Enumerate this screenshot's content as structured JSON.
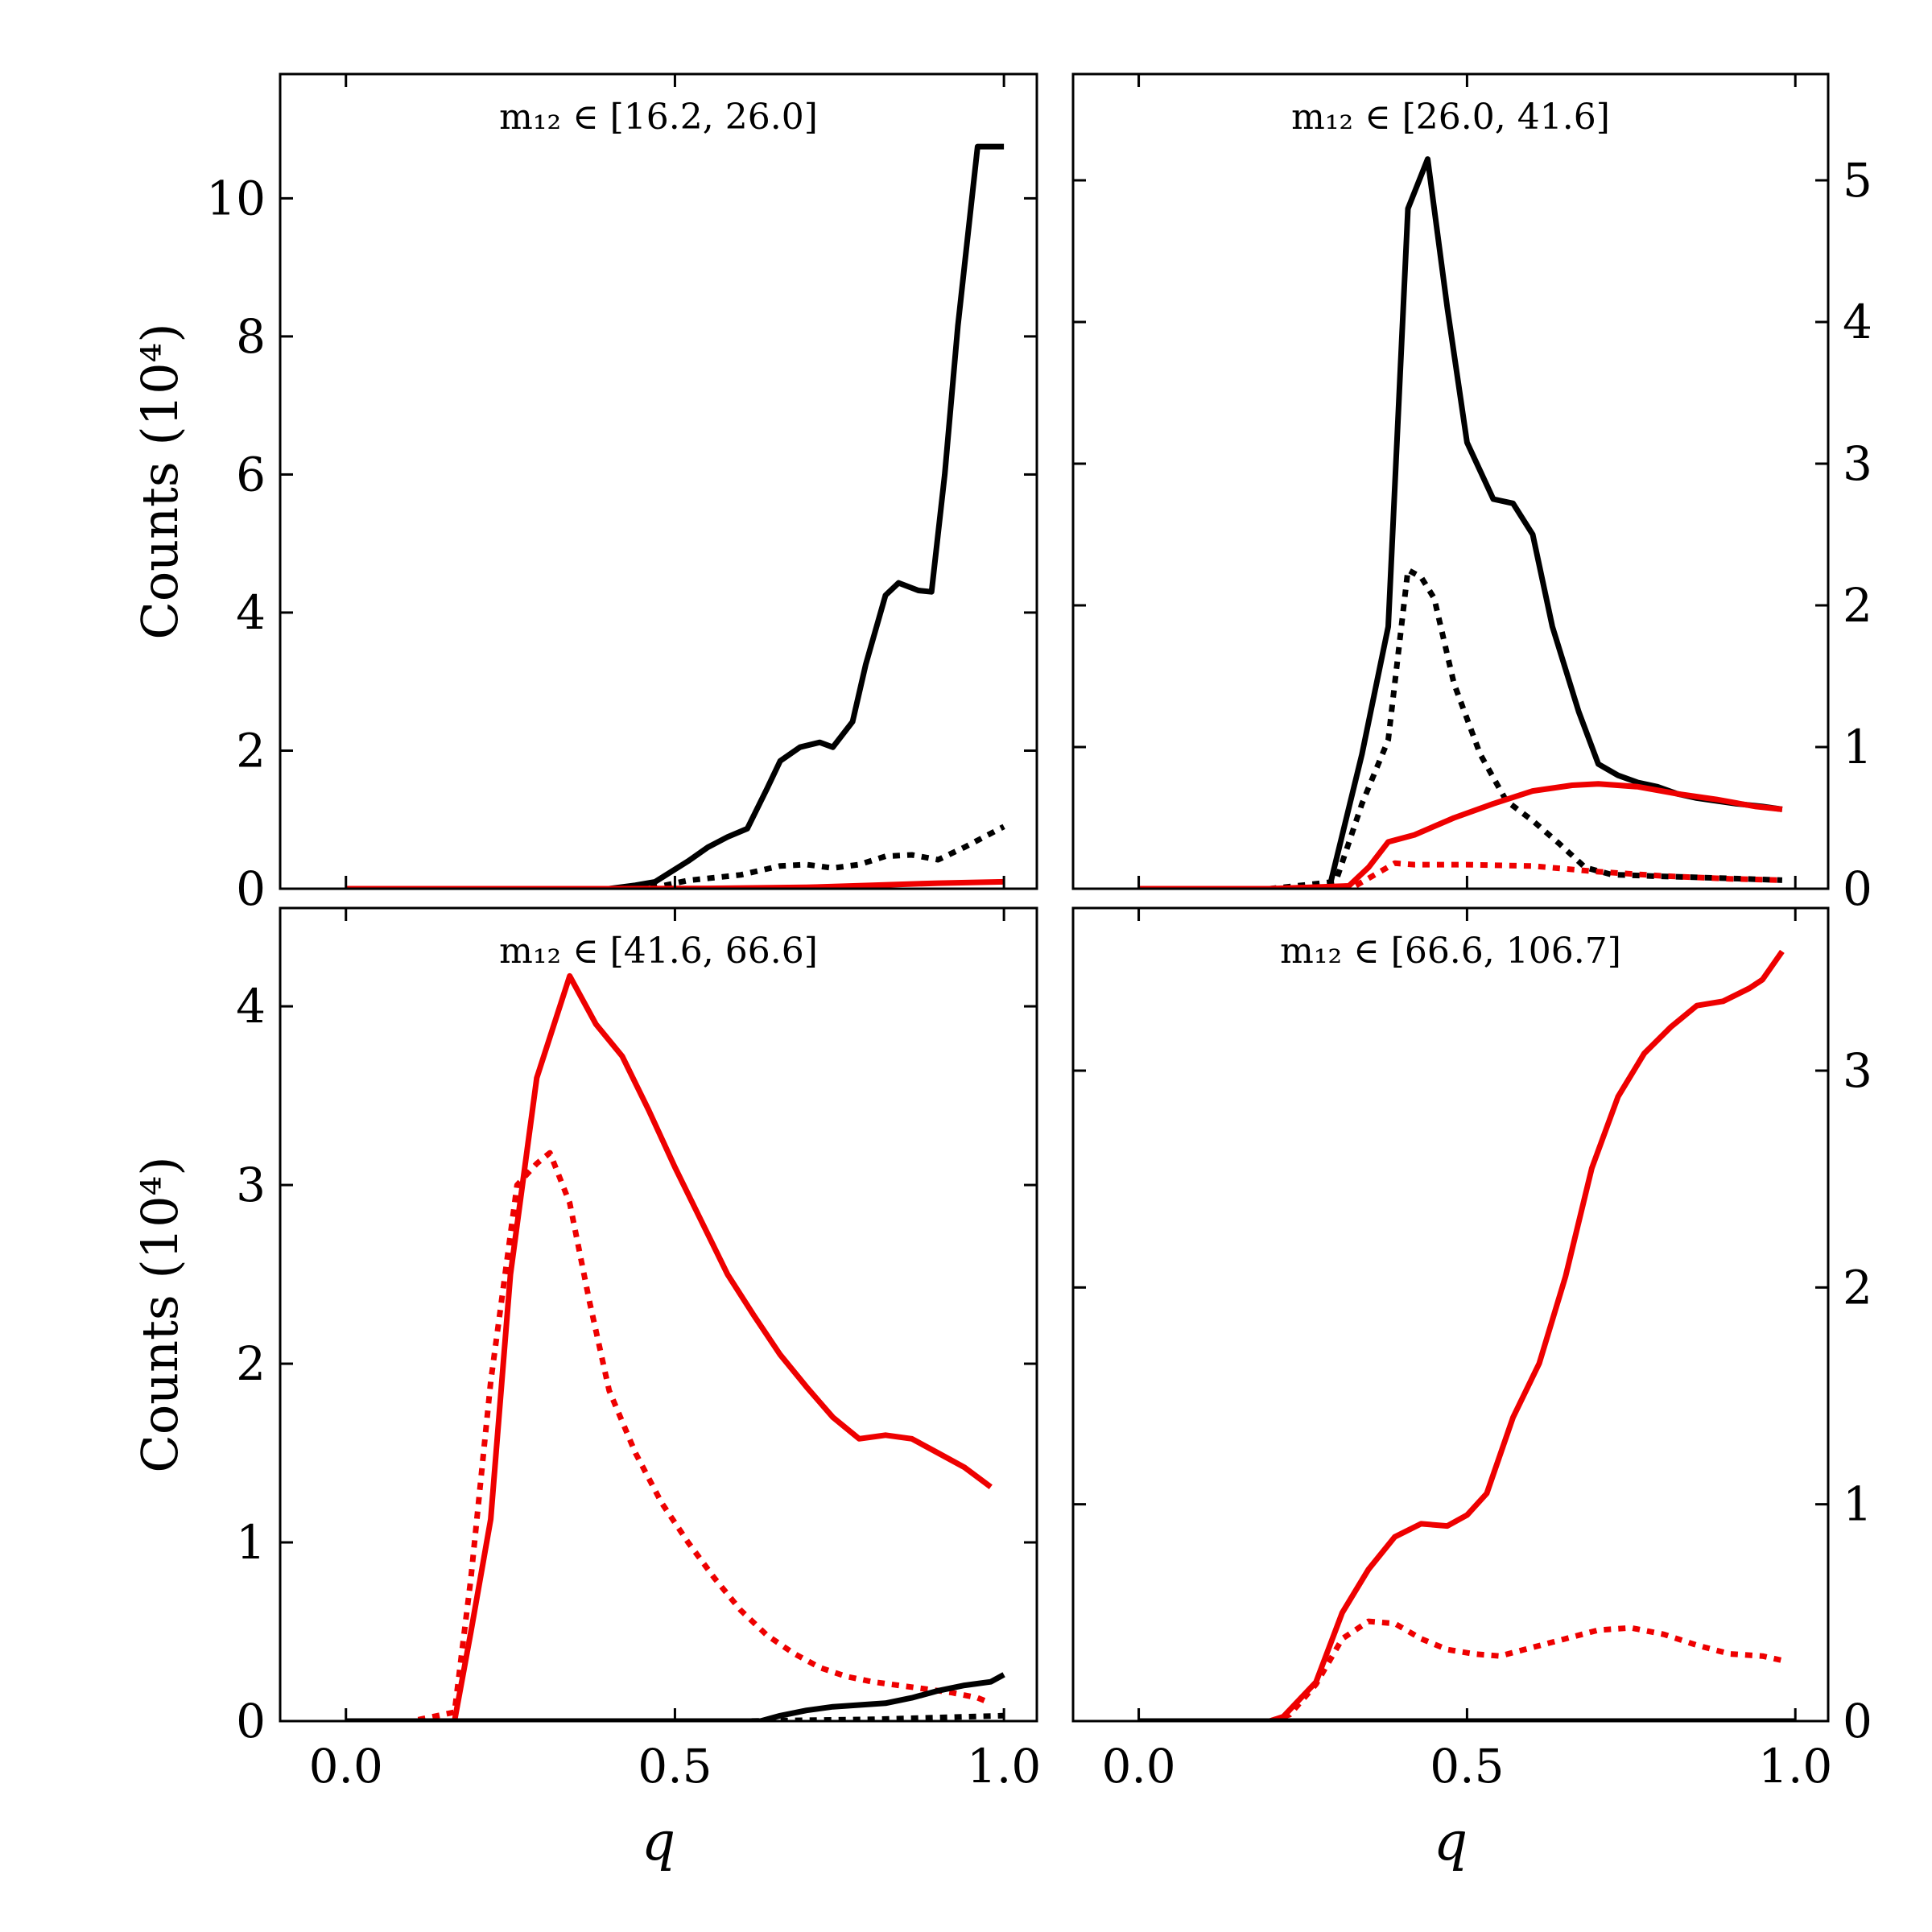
{
  "figure": {
    "ylabel": "Counts (10⁴)",
    "xlabel": "q"
  },
  "chart_data": [
    {
      "type": "line",
      "title": "m₁₂ ∈ [16.2, 26.0]",
      "xlim": [
        -0.1,
        1.05
      ],
      "ylim": [
        0,
        11.8
      ],
      "xticks": [
        "0.0",
        "0.5",
        "1.0"
      ],
      "yticks": [
        0,
        2,
        4,
        6,
        8,
        10
      ],
      "ytick_labels": [
        "0",
        "2",
        "4",
        "6",
        "8",
        "10"
      ],
      "yaxis_side": "left",
      "show_xtick_labels": false,
      "show_ylabel": true,
      "series": [
        {
          "color": "#000000",
          "dash": "solid",
          "x": [
            0.0,
            0.1,
            0.2,
            0.3,
            0.4,
            0.44,
            0.47,
            0.52,
            0.55,
            0.58,
            0.61,
            0.64,
            0.66,
            0.69,
            0.72,
            0.74,
            0.77,
            0.79,
            0.82,
            0.84,
            0.87,
            0.89,
            0.91,
            0.93,
            0.96,
            0.98,
            1.0
          ],
          "values": [
            0,
            0,
            0,
            0,
            0,
            0.05,
            0.1,
            0.4,
            0.6,
            0.75,
            0.87,
            1.45,
            1.85,
            2.05,
            2.12,
            2.05,
            2.42,
            3.25,
            4.25,
            4.43,
            4.32,
            4.3,
            6.0,
            8.15,
            10.75,
            10.75,
            10.75
          ]
        },
        {
          "color": "#000000",
          "dash": "dotted",
          "x": [
            0.0,
            0.2,
            0.4,
            0.47,
            0.52,
            0.6,
            0.66,
            0.7,
            0.74,
            0.78,
            0.82,
            0.86,
            0.9,
            0.94,
            1.0
          ],
          "values": [
            0,
            0,
            0,
            0.02,
            0.12,
            0.2,
            0.33,
            0.35,
            0.3,
            0.35,
            0.47,
            0.49,
            0.42,
            0.6,
            0.9
          ]
        },
        {
          "color": "#ee0000",
          "dash": "solid",
          "x": [
            0.0,
            0.4,
            0.55,
            0.7,
            0.8,
            0.9,
            1.0
          ],
          "values": [
            0,
            0,
            0.005,
            0.02,
            0.05,
            0.08,
            0.1
          ]
        }
      ]
    },
    {
      "type": "line",
      "title": "m₁₂ ∈ [26.0, 41.6]",
      "xlim": [
        -0.1,
        1.05
      ],
      "ylim": [
        0,
        5.75
      ],
      "xticks": [
        "0.0",
        "0.5",
        "1.0"
      ],
      "yticks": [
        0,
        1,
        2,
        3,
        4,
        5
      ],
      "ytick_labels": [
        "0",
        "1",
        "2",
        "3",
        "4",
        "5"
      ],
      "yaxis_side": "right",
      "show_xtick_labels": false,
      "show_ylabel": false,
      "series": [
        {
          "color": "#000000",
          "dash": "solid",
          "x": [
            0.0,
            0.1,
            0.2,
            0.29,
            0.34,
            0.38,
            0.41,
            0.44,
            0.47,
            0.5,
            0.54,
            0.57,
            0.6,
            0.63,
            0.67,
            0.7,
            0.73,
            0.76,
            0.79,
            0.82,
            0.85,
            0.88,
            0.91,
            0.95,
            0.98
          ],
          "values": [
            0,
            0,
            0,
            0,
            0.95,
            1.85,
            4.8,
            5.15,
            4.1,
            3.15,
            2.75,
            2.72,
            2.5,
            1.85,
            1.25,
            0.88,
            0.8,
            0.75,
            0.72,
            0.67,
            0.64,
            0.62,
            0.6,
            0.58,
            0.56
          ]
        },
        {
          "color": "#000000",
          "dash": "dotted",
          "x": [
            0.0,
            0.2,
            0.3,
            0.34,
            0.38,
            0.41,
            0.43,
            0.45,
            0.48,
            0.52,
            0.56,
            0.6,
            0.64,
            0.68,
            0.72,
            0.78,
            0.85,
            0.92,
            0.98
          ],
          "values": [
            0,
            0,
            0.05,
            0.6,
            1.05,
            2.25,
            2.2,
            2.05,
            1.45,
            0.95,
            0.62,
            0.48,
            0.32,
            0.15,
            0.1,
            0.09,
            0.08,
            0.07,
            0.06
          ]
        },
        {
          "color": "#ee0000",
          "dash": "solid",
          "x": [
            0.0,
            0.2,
            0.32,
            0.35,
            0.38,
            0.42,
            0.48,
            0.54,
            0.6,
            0.66,
            0.7,
            0.76,
            0.82,
            0.88,
            0.94,
            0.98
          ],
          "values": [
            0,
            0,
            0.02,
            0.15,
            0.33,
            0.38,
            0.5,
            0.6,
            0.69,
            0.73,
            0.74,
            0.72,
            0.67,
            0.63,
            0.58,
            0.56
          ]
        },
        {
          "color": "#ee0000",
          "dash": "dotted",
          "x": [
            0.0,
            0.2,
            0.33,
            0.36,
            0.39,
            0.42,
            0.5,
            0.6,
            0.7,
            0.8,
            0.9,
            0.98
          ],
          "values": [
            0,
            0,
            0.02,
            0.1,
            0.18,
            0.17,
            0.17,
            0.16,
            0.12,
            0.09,
            0.07,
            0.06
          ]
        }
      ]
    },
    {
      "type": "line",
      "title": "m₁₂ ∈ [41.6, 66.6]",
      "xlim": [
        -0.1,
        1.05
      ],
      "ylim": [
        0,
        4.55
      ],
      "xticks": [
        "0.0",
        "0.5",
        "1.0"
      ],
      "yticks": [
        0,
        1,
        2,
        3,
        4
      ],
      "ytick_labels": [
        "0",
        "1",
        "2",
        "3",
        "4"
      ],
      "yaxis_side": "left",
      "show_xtick_labels": true,
      "show_ylabel": true,
      "series": [
        {
          "color": "#ee0000",
          "dash": "solid",
          "x": [
            0.0,
            0.1,
            0.165,
            0.19,
            0.22,
            0.25,
            0.29,
            0.34,
            0.38,
            0.42,
            0.46,
            0.5,
            0.54,
            0.58,
            0.62,
            0.66,
            0.7,
            0.74,
            0.78,
            0.82,
            0.86,
            0.9,
            0.94,
            0.98
          ],
          "values": [
            0,
            0,
            0,
            0.5,
            1.13,
            2.5,
            3.6,
            4.17,
            3.9,
            3.72,
            3.42,
            3.1,
            2.8,
            2.5,
            2.27,
            2.05,
            1.87,
            1.7,
            1.58,
            1.6,
            1.58,
            1.5,
            1.42,
            1.31
          ]
        },
        {
          "color": "#ee0000",
          "dash": "dotted",
          "x": [
            0.0,
            0.1,
            0.165,
            0.19,
            0.22,
            0.26,
            0.29,
            0.31,
            0.34,
            0.37,
            0.4,
            0.44,
            0.48,
            0.52,
            0.56,
            0.6,
            0.64,
            0.68,
            0.72,
            0.76,
            0.8,
            0.84,
            0.88,
            0.92,
            0.96,
            0.98
          ],
          "values": [
            0,
            0,
            0.05,
            0.8,
            1.9,
            3.0,
            3.12,
            3.18,
            2.9,
            2.35,
            1.85,
            1.5,
            1.22,
            1.0,
            0.8,
            0.62,
            0.48,
            0.38,
            0.3,
            0.25,
            0.22,
            0.2,
            0.18,
            0.16,
            0.13,
            0.1
          ]
        },
        {
          "color": "#000000",
          "dash": "solid",
          "x": [
            0.0,
            0.5,
            0.63,
            0.66,
            0.7,
            0.74,
            0.78,
            0.82,
            0.86,
            0.9,
            0.94,
            0.98,
            1.0
          ],
          "values": [
            0,
            0,
            0.0,
            0.03,
            0.06,
            0.08,
            0.09,
            0.1,
            0.13,
            0.17,
            0.2,
            0.22,
            0.26
          ]
        },
        {
          "color": "#000000",
          "dash": "dotted",
          "x": [
            0.0,
            0.6,
            0.8,
            0.9,
            1.0
          ],
          "values": [
            0,
            0,
            0.01,
            0.02,
            0.03
          ]
        }
      ]
    },
    {
      "type": "line",
      "title": "m₁₂ ∈ [66.6, 106.7]",
      "xlim": [
        -0.1,
        1.05
      ],
      "ylim": [
        0,
        3.75
      ],
      "xticks": [
        "0.0",
        "0.5",
        "1.0"
      ],
      "yticks": [
        0,
        1,
        2,
        3
      ],
      "ytick_labels": [
        "0",
        "1",
        "2",
        "3"
      ],
      "yaxis_side": "right",
      "show_xtick_labels": true,
      "show_ylabel": false,
      "series": [
        {
          "color": "#ee0000",
          "dash": "solid",
          "x": [
            0.0,
            0.1,
            0.2,
            0.22,
            0.27,
            0.31,
            0.35,
            0.39,
            0.43,
            0.47,
            0.5,
            0.53,
            0.57,
            0.61,
            0.65,
            0.69,
            0.73,
            0.77,
            0.81,
            0.85,
            0.89,
            0.93,
            0.95,
            0.98
          ],
          "values": [
            0,
            0,
            0,
            0.02,
            0.18,
            0.5,
            0.7,
            0.85,
            0.91,
            0.9,
            0.95,
            1.05,
            1.4,
            1.65,
            2.05,
            2.55,
            2.88,
            3.08,
            3.2,
            3.3,
            3.32,
            3.38,
            3.42,
            3.55
          ]
        },
        {
          "color": "#ee0000",
          "dash": "dotted",
          "x": [
            0.0,
            0.2,
            0.23,
            0.27,
            0.31,
            0.35,
            0.39,
            0.43,
            0.47,
            0.51,
            0.55,
            0.6,
            0.65,
            0.7,
            0.75,
            0.8,
            0.85,
            0.9,
            0.95,
            0.98
          ],
          "values": [
            0,
            0,
            0.03,
            0.17,
            0.38,
            0.46,
            0.45,
            0.38,
            0.33,
            0.31,
            0.3,
            0.34,
            0.38,
            0.42,
            0.43,
            0.4,
            0.35,
            0.31,
            0.3,
            0.28
          ]
        },
        {
          "color": "#000000",
          "dash": "solid",
          "x": [
            0.0,
            1.0
          ],
          "values": [
            0,
            0
          ]
        }
      ]
    }
  ]
}
